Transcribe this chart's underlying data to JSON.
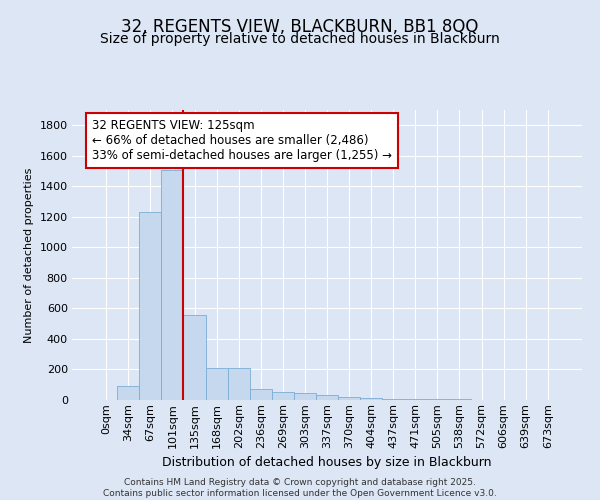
{
  "title": "32, REGENTS VIEW, BLACKBURN, BB1 8QQ",
  "subtitle": "Size of property relative to detached houses in Blackburn",
  "xlabel": "Distribution of detached houses by size in Blackburn",
  "ylabel": "Number of detached properties",
  "bar_labels": [
    "0sqm",
    "34sqm",
    "67sqm",
    "101sqm",
    "135sqm",
    "168sqm",
    "202sqm",
    "236sqm",
    "269sqm",
    "303sqm",
    "337sqm",
    "370sqm",
    "404sqm",
    "437sqm",
    "471sqm",
    "505sqm",
    "538sqm",
    "572sqm",
    "606sqm",
    "639sqm",
    "673sqm"
  ],
  "bar_values": [
    0,
    93,
    1230,
    1510,
    560,
    210,
    210,
    70,
    50,
    45,
    32,
    22,
    10,
    8,
    6,
    5,
    4,
    3,
    2,
    1,
    1
  ],
  "bar_color": "#c5d8ee",
  "bar_edgecolor": "#7aaed4",
  "ylim": [
    0,
    1900
  ],
  "vline_x": 3.5,
  "vline_color": "#cc0000",
  "annotation_text": "32 REGENTS VIEW: 125sqm\n← 66% of detached houses are smaller (2,486)\n33% of semi-detached houses are larger (1,255) →",
  "annotation_box_facecolor": "#ffffff",
  "annotation_box_edgecolor": "#cc0000",
  "footer_text": "Contains HM Land Registry data © Crown copyright and database right 2025.\nContains public sector information licensed under the Open Government Licence v3.0.",
  "bg_color": "#dce6f5",
  "plot_bg_color": "#dce6f5",
  "grid_color": "#ffffff",
  "yticks": [
    0,
    200,
    400,
    600,
    800,
    1000,
    1200,
    1400,
    1600,
    1800
  ],
  "title_fontsize": 12,
  "subtitle_fontsize": 10,
  "xlabel_fontsize": 9,
  "ylabel_fontsize": 8,
  "tick_fontsize": 8,
  "annotation_fontsize": 8.5,
  "footer_fontsize": 6.5
}
